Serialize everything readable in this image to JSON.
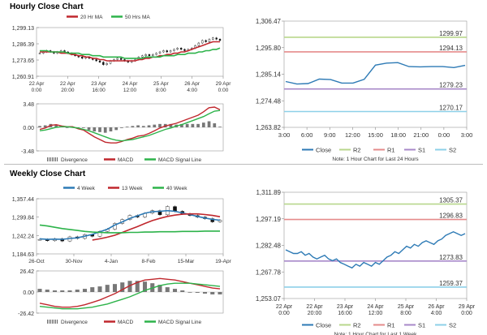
{
  "sections": {
    "hourly_title": "Hourly Close Chart",
    "weekly_title": "Weekly Close Chart"
  },
  "colors": {
    "red": "#c0272d",
    "green": "#2db34a",
    "blue": "#2d7ab5",
    "dark": "#333333",
    "gray": "#808080",
    "r2": "#b8d78c",
    "r1": "#e58b8b",
    "s1": "#a889c9",
    "s2": "#8dd0e8"
  },
  "chart_data": [
    {
      "id": "hourly-ma",
      "type": "candlestick",
      "legend": [
        "20 Hr MA",
        "50 Hrs MA"
      ],
      "yticks": [
        "1,299.13",
        "1,286.39",
        "1,273.65",
        "1,260.91"
      ],
      "ylim": [
        1260.91,
        1299.13
      ],
      "xticks": [
        [
          "22 Apr",
          "0:00"
        ],
        [
          "22 Apr",
          "20:00"
        ],
        [
          "23 Apr",
          "16:00"
        ],
        [
          "24 Apr",
          "12:00"
        ],
        [
          "25 Apr",
          "8:00"
        ],
        [
          "26 Apr",
          "4:00"
        ],
        [
          "29 Apr",
          "0:00"
        ]
      ],
      "close": [
        1279,
        1280,
        1281,
        1280,
        1279,
        1280,
        1281,
        1280,
        1279,
        1278,
        1277,
        1276,
        1275,
        1276,
        1275,
        1274,
        1273,
        1272,
        1270,
        1271,
        1273,
        1274,
        1275,
        1274,
        1273,
        1272,
        1273,
        1274,
        1276,
        1277,
        1278,
        1277,
        1278,
        1279,
        1280,
        1281,
        1280,
        1281,
        1282,
        1283,
        1282,
        1281,
        1282,
        1283,
        1285,
        1287,
        1289,
        1288,
        1290,
        1291,
        1290,
        1289
      ],
      "ma20": [
        1280,
        1280,
        1280,
        1280,
        1280,
        1280,
        1279,
        1279,
        1279,
        1278,
        1278,
        1277,
        1277,
        1276,
        1276,
        1275,
        1275,
        1274,
        1274,
        1273,
        1273,
        1273,
        1273,
        1273,
        1273,
        1273,
        1273,
        1273,
        1274,
        1274,
        1275,
        1275,
        1276,
        1276,
        1277,
        1277,
        1278,
        1278,
        1279,
        1279,
        1280,
        1280,
        1281,
        1282,
        1283,
        1284,
        1285,
        1286,
        1287,
        1288,
        1288,
        1288
      ],
      "ma50": [
        1281,
        1281,
        1281,
        1280,
        1280,
        1280,
        1280,
        1280,
        1279,
        1279,
        1279,
        1279,
        1278,
        1278,
        1278,
        1277,
        1277,
        1277,
        1276,
        1276,
        1276,
        1276,
        1276,
        1276,
        1275,
        1275,
        1275,
        1275,
        1275,
        1275,
        1276,
        1276,
        1276,
        1276,
        1276,
        1277,
        1277,
        1277,
        1277,
        1278,
        1278,
        1278,
        1279,
        1279,
        1279,
        1280,
        1280,
        1281,
        1281,
        1282,
        1282,
        1283
      ]
    },
    {
      "id": "hourly-macd",
      "type": "macd",
      "legend": [
        "Divergence",
        "MACD",
        "MACD Signal Line"
      ],
      "yticks": [
        "3.48",
        "0.00",
        "-3.48"
      ],
      "ylim": [
        -3.48,
        3.48
      ],
      "macd": [
        -0.3,
        -0.1,
        0.3,
        0.4,
        0.2,
        0.1,
        0.1,
        -0.2,
        -0.4,
        -0.9,
        -1.4,
        -1.8,
        -2.2,
        -2.3,
        -2.3,
        -2.1,
        -1.8,
        -1.6,
        -1.3,
        -1.2,
        -0.9,
        -0.5,
        -0.1,
        0.2,
        0.4,
        0.6,
        0.9,
        1.2,
        1.5,
        1.8,
        2.3,
        2.9,
        3.0,
        2.6
      ],
      "signal": [
        -0.5,
        -0.4,
        -0.2,
        0.0,
        0.1,
        0.1,
        0.0,
        -0.1,
        -0.3,
        -0.5,
        -0.8,
        -1.1,
        -1.4,
        -1.7,
        -1.9,
        -2.0,
        -1.9,
        -1.8,
        -1.6,
        -1.4,
        -1.2,
        -0.9,
        -0.6,
        -0.3,
        -0.1,
        0.2,
        0.4,
        0.7,
        1.0,
        1.3,
        1.6,
        2.0,
        2.4,
        2.5
      ],
      "divergence": [
        0.2,
        0.3,
        0.5,
        0.4,
        0.1,
        0.0,
        0.1,
        -0.1,
        -0.1,
        -0.4,
        -0.6,
        -0.7,
        -0.8,
        -0.6,
        -0.4,
        -0.1,
        0.1,
        0.2,
        0.3,
        0.2,
        0.3,
        0.4,
        0.5,
        0.5,
        0.5,
        0.4,
        0.5,
        0.5,
        0.5,
        0.5,
        0.7,
        0.9,
        0.6,
        0.1
      ]
    },
    {
      "id": "hourly-close",
      "type": "line",
      "yticks": [
        "1,306.47",
        "1,295.80",
        "1,285.14",
        "1,274.48",
        "1,263.82"
      ],
      "ylim": [
        1263.82,
        1306.47
      ],
      "xticks": [
        "3:00",
        "6:00",
        "9:00",
        "12:00",
        "15:00",
        "18:00",
        "21:00",
        "0:00",
        "3:00"
      ],
      "close": [
        1282.2,
        1281.2,
        1281.4,
        1283.2,
        1283.0,
        1281.6,
        1281.6,
        1283.1,
        1288.8,
        1289.6,
        1289.8,
        1288.2,
        1288.1,
        1288.2,
        1288.2,
        1287.8,
        1288.7
      ],
      "levels": [
        {
          "name": "R2",
          "value": 1299.97,
          "label": "1299.97"
        },
        {
          "name": "R1",
          "value": 1294.13,
          "label": "1294.13"
        },
        {
          "name": "S1",
          "value": 1279.23,
          "label": "1279.23"
        },
        {
          "name": "S2",
          "value": 1270.17,
          "label": "1270.17"
        }
      ],
      "legend": [
        "Close",
        "R2",
        "R1",
        "S1",
        "S2"
      ],
      "note": "Note: 1 Hour Chart for Last 24 Hours"
    },
    {
      "id": "weekly-ma",
      "type": "candlestick",
      "legend": [
        "4 Week",
        "13 Week",
        "40 Week"
      ],
      "yticks": [
        "1,357.44",
        "1,299.84",
        "1,242.24",
        "1,184.63"
      ],
      "ylim": [
        1184.63,
        1357.44
      ],
      "xticks": [
        "26-Oct",
        "30-Nov",
        "4-Jan",
        "8-Feb",
        "15-Mar",
        "19-Apr"
      ],
      "close": [
        1230,
        1226,
        1232,
        1225,
        1238,
        1233,
        1245,
        1240,
        1255,
        1262,
        1280,
        1292,
        1305,
        1300,
        1312,
        1320,
        1307,
        1333,
        1318,
        1310,
        1305,
        1300,
        1295,
        1285,
        1290
      ],
      "ma4": [
        1232,
        1230,
        1231,
        1230,
        1233,
        1235,
        1240,
        1246,
        1254,
        1262,
        1275,
        1285,
        1296,
        1304,
        1312,
        1317,
        1318,
        1320,
        1318,
        1313,
        1308,
        1302,
        1297,
        1293,
        1290
      ],
      "ma13": [
        null,
        null,
        null,
        null,
        null,
        null,
        null,
        1228,
        1232,
        1237,
        1243,
        1252,
        1261,
        1270,
        1280,
        1289,
        1296,
        1302,
        1306,
        1309,
        1310,
        1310,
        1308,
        1305,
        1301
      ],
      "ma40": [
        1275,
        1272,
        1268,
        1264,
        1261,
        1258,
        1255,
        1253,
        1252,
        1251,
        1251,
        1251,
        1252,
        1252,
        1253,
        1253,
        1254,
        1254,
        1254,
        1255,
        1255,
        1255,
        1256,
        1256,
        1256
      ]
    },
    {
      "id": "weekly-macd",
      "type": "macd",
      "legend": [
        "Divergence",
        "MACD",
        "MACD Signal Line"
      ],
      "yticks": [
        "26.42",
        "0.00",
        "-26.42"
      ],
      "ylim": [
        -26.42,
        26.42
      ],
      "macd": [
        -14,
        -16,
        -18,
        -19,
        -19,
        -18,
        -16,
        -13,
        -10,
        -6,
        -2,
        3,
        8,
        12,
        15,
        16,
        17,
        16,
        15,
        13,
        11,
        9,
        7,
        5,
        4
      ],
      "signal": [
        -18,
        -19,
        -20,
        -21,
        -21,
        -21,
        -20,
        -19,
        -17,
        -15,
        -12,
        -9,
        -6,
        -2,
        2,
        5,
        8,
        10,
        11,
        11,
        11,
        10,
        9,
        8,
        7
      ],
      "divergence": [
        4,
        3,
        2,
        2,
        2,
        3,
        4,
        6,
        7,
        9,
        10,
        12,
        14,
        14,
        13,
        11,
        9,
        6,
        4,
        2,
        0,
        -1,
        -2,
        -3,
        -3
      ]
    },
    {
      "id": "weekly-close",
      "type": "line",
      "yticks": [
        "1,311.89",
        "1,297.19",
        "1,282.48",
        "1,267.78",
        "1,253.07"
      ],
      "ylim": [
        1253.07,
        1311.89
      ],
      "xticks": [
        [
          "22 Apr",
          "0:00"
        ],
        [
          "22 Apr",
          "20:00"
        ],
        [
          "23 Apr",
          "16:00"
        ],
        [
          "24 Apr",
          "12:00"
        ],
        [
          "25 Apr",
          "8:00"
        ],
        [
          "26 Apr",
          "4:00"
        ],
        [
          "29 Apr",
          "0:00"
        ]
      ],
      "close": [
        1280,
        1279,
        1278,
        1278,
        1279,
        1277,
        1278,
        1276,
        1275,
        1276,
        1277,
        1275,
        1274,
        1275,
        1273,
        1272,
        1271,
        1270,
        1272,
        1271,
        1273,
        1272,
        1271,
        1273,
        1272,
        1274,
        1276,
        1277,
        1279,
        1278,
        1280,
        1282,
        1281,
        1283,
        1282,
        1284,
        1285,
        1284,
        1283,
        1285,
        1286,
        1288,
        1289,
        1290,
        1289,
        1288,
        1289
      ],
      "levels": [
        {
          "name": "R2",
          "value": 1305.37,
          "label": "1305.37"
        },
        {
          "name": "R1",
          "value": 1296.83,
          "label": "1296.83"
        },
        {
          "name": "S1",
          "value": 1273.83,
          "label": "1273.83"
        },
        {
          "name": "S2",
          "value": 1259.37,
          "label": "1259.37"
        }
      ],
      "legend": [
        "Close",
        "R2",
        "R1",
        "S1",
        "S2"
      ],
      "note": "Note: 1 Hour Chart for Last 1 Week"
    }
  ]
}
